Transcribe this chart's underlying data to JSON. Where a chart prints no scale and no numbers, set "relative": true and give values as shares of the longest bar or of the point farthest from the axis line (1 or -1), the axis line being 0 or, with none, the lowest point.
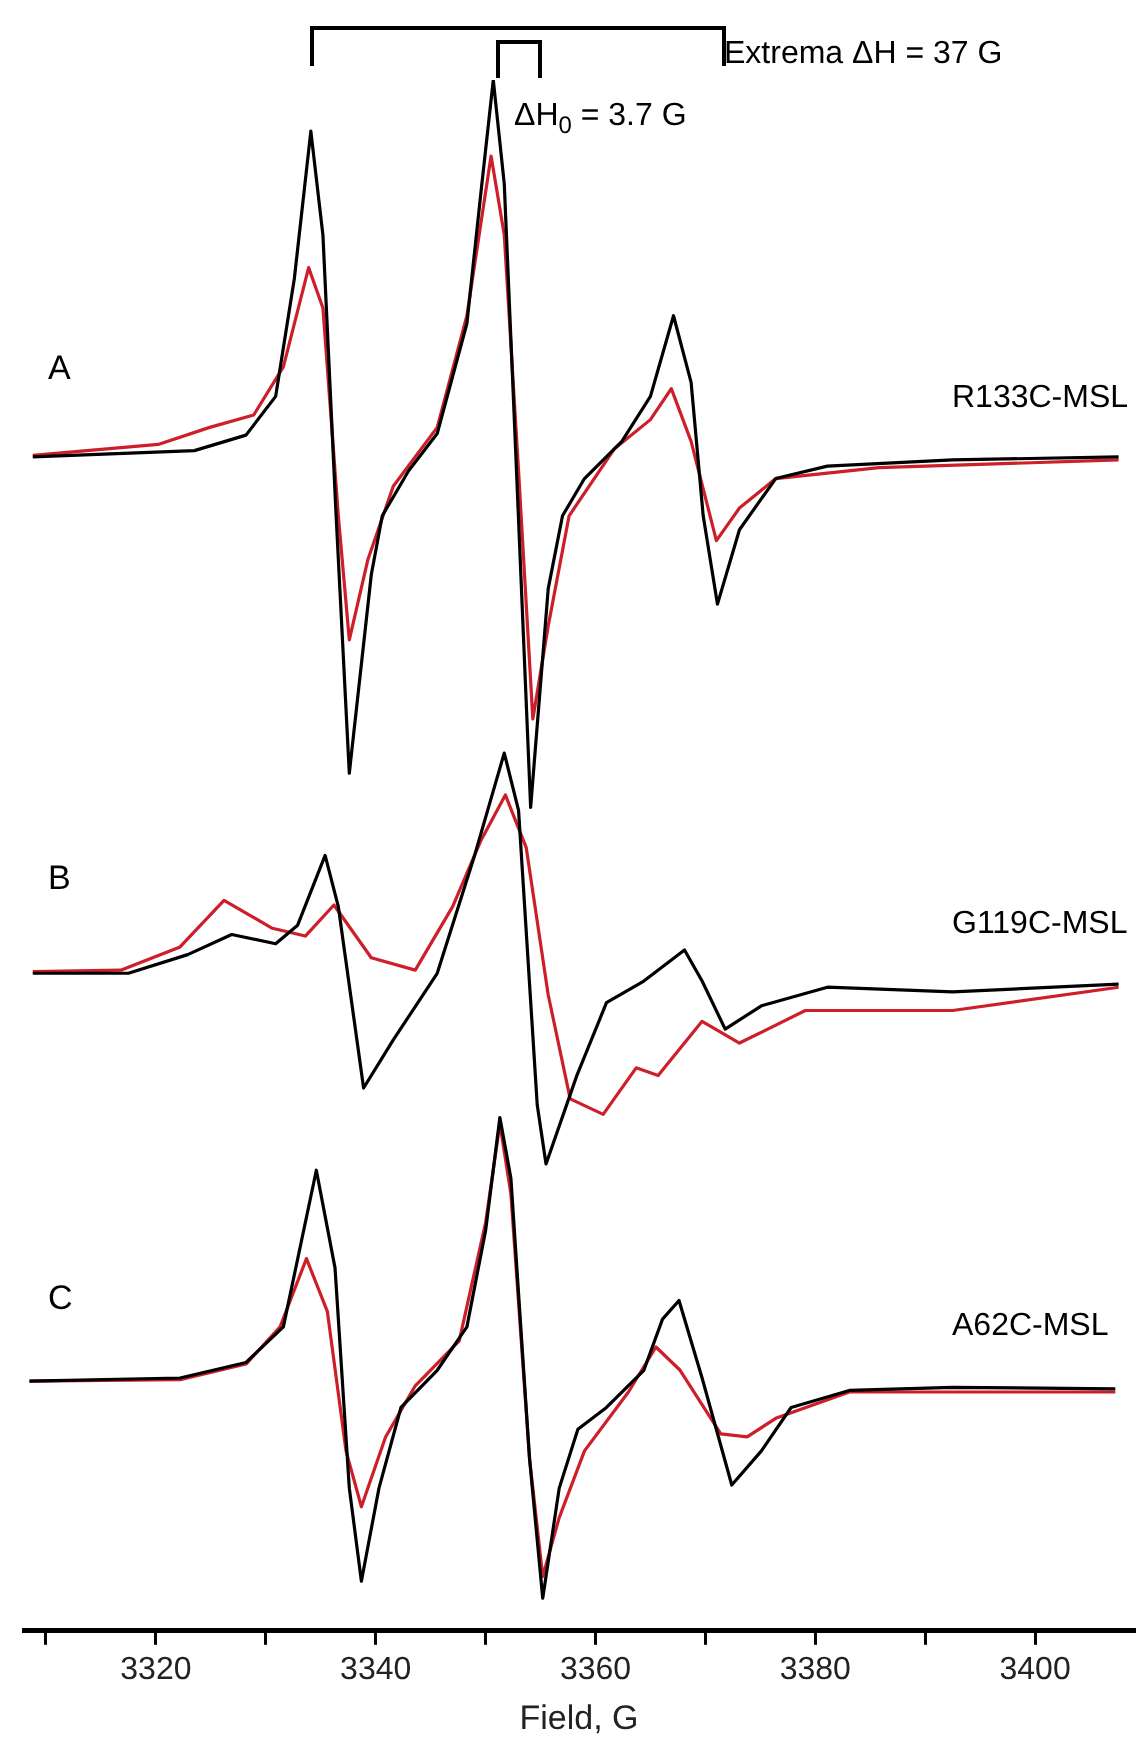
{
  "chart_data": {
    "type": "line",
    "relative": true,
    "xlabel": "Field, G",
    "xlim": [
      3308,
      3409
    ],
    "xticks": [
      {
        "value": 3310,
        "label": null
      },
      3320,
      {
        "value": 3330,
        "label": null
      },
      3340,
      {
        "value": 3350,
        "label": null
      },
      3360,
      {
        "value": 3370,
        "label": null
      },
      3380,
      {
        "value": 3390,
        "label": null
      },
      3400
    ],
    "tick_labels": "x",
    "grid": false,
    "legend": false,
    "marker": "none",
    "line_style": "solid",
    "annotations": [
      "A",
      "R133C-MSL",
      "B",
      "G119C-MSL",
      "C",
      "A62C-MSL",
      "Extrema ΔH = 37 G",
      "ΔH$_{0}$ = 3.7 G"
    ],
    "series": [
      {
        "color": "#000000",
        "x": [
          3308.8,
          3323.5,
          3328.2,
          3330.9,
          3332.6,
          3334.1,
          3335.2,
          3336.4,
          3337.6,
          3339.6,
          3340.6,
          3343.0,
          3345.6,
          3348.3,
          3349.6,
          3350.7,
          3351.7,
          3352.7,
          3354.1,
          3355.7,
          3357.0,
          3359.0,
          3362.4,
          3365.0,
          3367.1,
          3368.7,
          3369.8,
          3371.1,
          3373.1,
          3376.4,
          3381.1,
          3392.5,
          3407.6
        ],
        "values": [
          0.757,
          0.761,
          0.771,
          0.796,
          0.872,
          0.967,
          0.9,
          0.719,
          0.553,
          0.681,
          0.719,
          0.748,
          0.772,
          0.843,
          0.929,
          1.0,
          0.933,
          0.767,
          0.531,
          0.672,
          0.719,
          0.743,
          0.767,
          0.796,
          0.848,
          0.805,
          0.719,
          0.662,
          0.71,
          0.743,
          0.751,
          0.755,
          0.757
        ]
      },
      {
        "color": "#cc1f2a",
        "x": [
          3308.8,
          3320.2,
          3324.9,
          3328.9,
          3331.6,
          3333.9,
          3335.2,
          3336.6,
          3337.6,
          3339.3,
          3341.6,
          3345.6,
          3348.3,
          3350.5,
          3351.7,
          3353.0,
          3354.3,
          3355.7,
          3357.6,
          3361.7,
          3365.0,
          3366.9,
          3368.7,
          3371.0,
          3373.1,
          3376.4,
          3385.8,
          3407.6
        ],
        "values": [
          0.758,
          0.765,
          0.776,
          0.784,
          0.815,
          0.879,
          0.853,
          0.719,
          0.639,
          0.691,
          0.738,
          0.776,
          0.848,
          0.951,
          0.9,
          0.748,
          0.588,
          0.648,
          0.719,
          0.762,
          0.781,
          0.801,
          0.767,
          0.703,
          0.724,
          0.743,
          0.75,
          0.755
        ]
      },
      {
        "color": "#000000",
        "x": [
          3308.8,
          3317.5,
          3322.9,
          3326.9,
          3330.9,
          3332.9,
          3335.4,
          3336.6,
          3338.9,
          3341.6,
          3345.6,
          3349.0,
          3351.7,
          3353.0,
          3354.7,
          3355.5,
          3358.3,
          3361.0,
          3364.4,
          3368.1,
          3369.7,
          3371.8,
          3375.1,
          3381.1,
          3392.5,
          3407.6
        ],
        "values": [
          0.424,
          0.424,
          0.436,
          0.449,
          0.443,
          0.455,
          0.5,
          0.467,
          0.35,
          0.381,
          0.424,
          0.5,
          0.566,
          0.529,
          0.339,
          0.301,
          0.358,
          0.405,
          0.419,
          0.439,
          0.419,
          0.388,
          0.403,
          0.415,
          0.412,
          0.417
        ]
      },
      {
        "color": "#cc1f2a",
        "x": [
          3308.8,
          3316.8,
          3322.2,
          3326.2,
          3330.6,
          3333.6,
          3336.2,
          3339.6,
          3343.6,
          3347.0,
          3349.6,
          3351.8,
          3353.7,
          3355.7,
          3357.7,
          3360.7,
          3363.7,
          3365.7,
          3369.7,
          3373.1,
          3379.1,
          3392.5,
          3407.6
        ],
        "values": [
          0.425,
          0.426,
          0.441,
          0.471,
          0.453,
          0.448,
          0.468,
          0.434,
          0.426,
          0.467,
          0.51,
          0.539,
          0.505,
          0.41,
          0.343,
          0.333,
          0.363,
          0.358,
          0.393,
          0.379,
          0.4,
          0.4,
          0.415
        ]
      },
      {
        "color": "#000000",
        "x": [
          3308.5,
          3322.2,
          3328.2,
          3331.6,
          3334.6,
          3336.3,
          3337.6,
          3338.7,
          3340.3,
          3342.3,
          3345.6,
          3348.3,
          3350.0,
          3351.3,
          3352.3,
          3354.0,
          3355.2,
          3356.7,
          3358.4,
          3361.0,
          3364.4,
          3366.1,
          3367.6,
          3369.7,
          3372.4,
          3375.1,
          3377.8,
          3383.1,
          3392.5,
          3407.3
        ],
        "values": [
          0.161,
          0.163,
          0.173,
          0.196,
          0.297,
          0.234,
          0.092,
          0.032,
          0.092,
          0.144,
          0.168,
          0.196,
          0.258,
          0.331,
          0.292,
          0.111,
          0.021,
          0.092,
          0.13,
          0.144,
          0.168,
          0.201,
          0.213,
          0.163,
          0.094,
          0.116,
          0.144,
          0.155,
          0.157,
          0.156
        ]
      },
      {
        "color": "#cc1f2a",
        "x": [
          3308.5,
          3322.2,
          3328.2,
          3331.3,
          3333.7,
          3335.6,
          3337.3,
          3338.7,
          3340.9,
          3343.6,
          3347.6,
          3350.0,
          3351.3,
          3352.3,
          3354.0,
          3355.2,
          3356.7,
          3359.0,
          3363.0,
          3365.5,
          3367.7,
          3371.4,
          3373.8,
          3376.4,
          3383.1,
          3407.3
        ],
        "values": [
          0.161,
          0.162,
          0.172,
          0.196,
          0.24,
          0.206,
          0.116,
          0.08,
          0.125,
          0.158,
          0.187,
          0.263,
          0.327,
          0.282,
          0.111,
          0.035,
          0.073,
          0.116,
          0.154,
          0.183,
          0.168,
          0.127,
          0.125,
          0.137,
          0.154,
          0.154
        ]
      }
    ]
  }
}
